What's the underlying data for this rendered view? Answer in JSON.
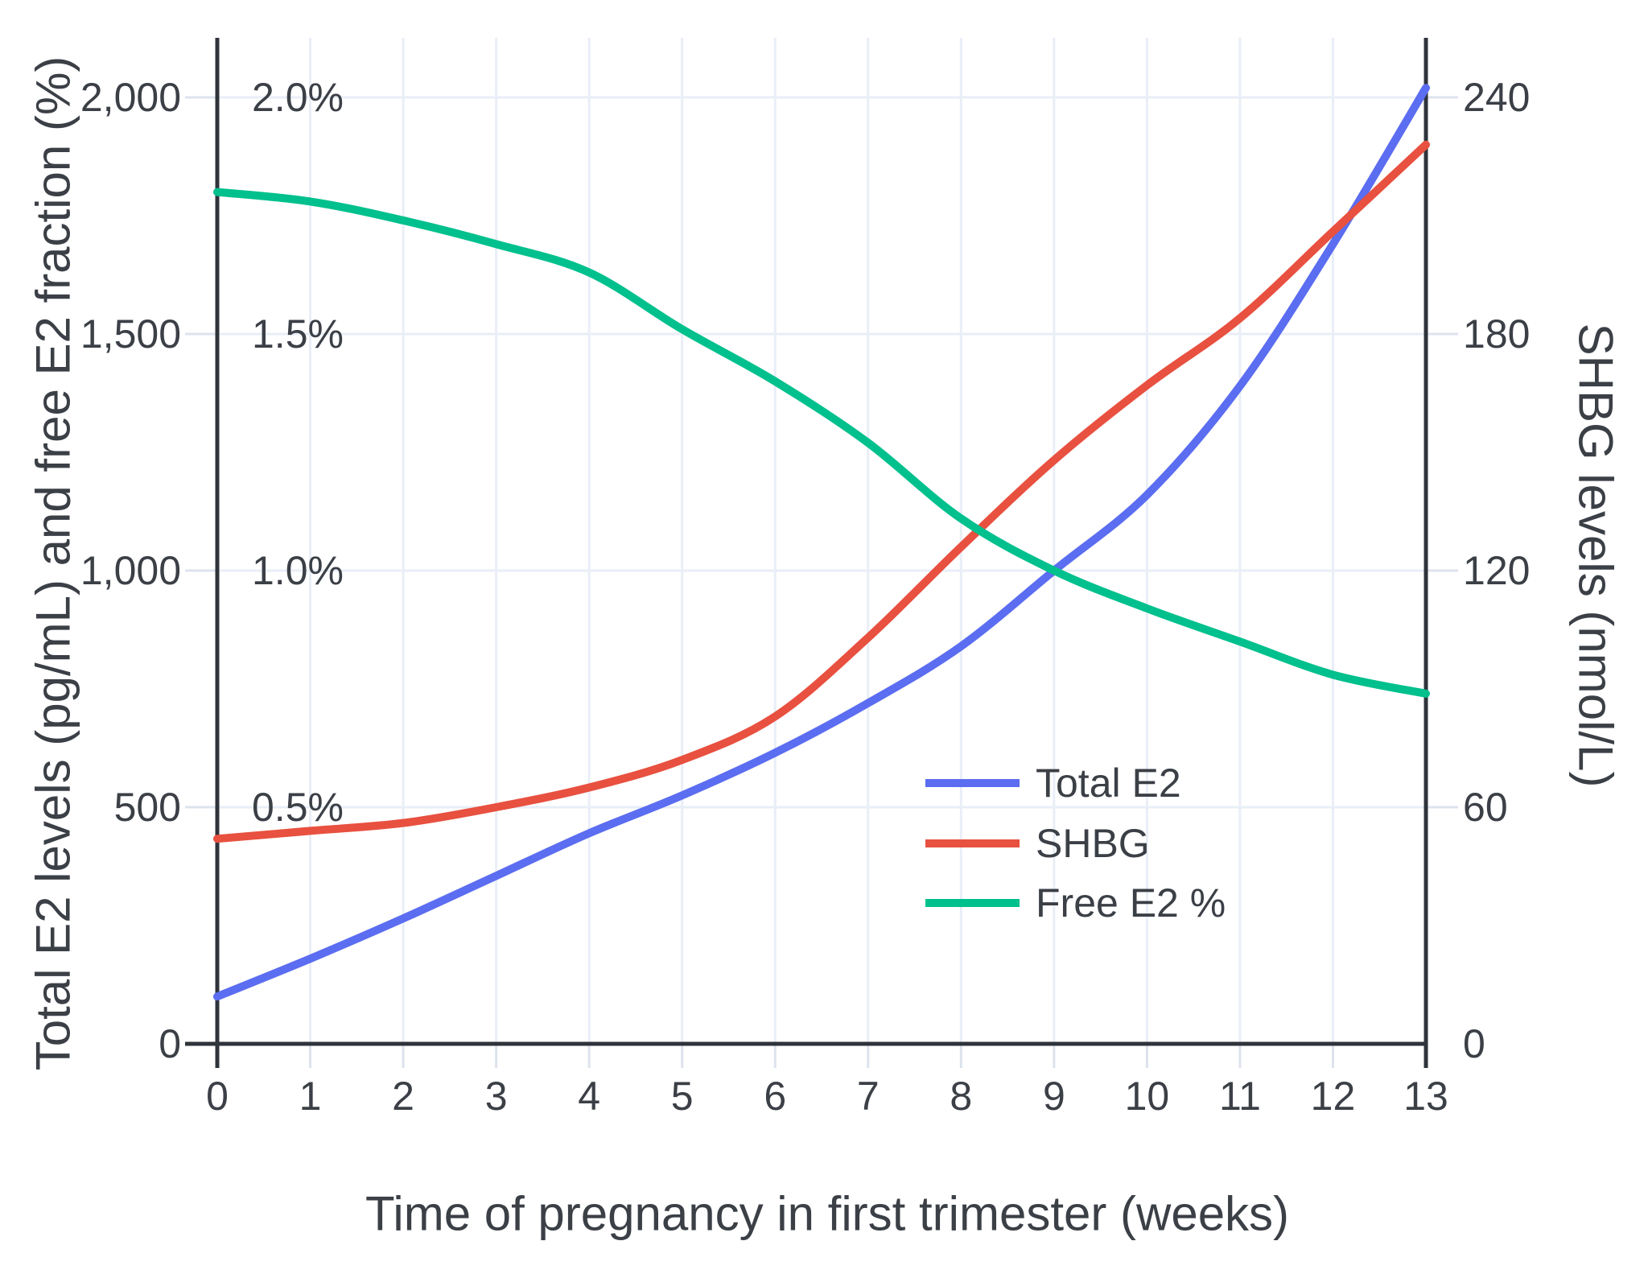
{
  "chart_data": {
    "type": "line",
    "title": "",
    "xlabel": "Time of pregnancy in first trimester (weeks)",
    "ylabel_left": "Total E2 levels (pg/mL) and free E2 fraction (%)",
    "ylabel_right": "SHBG levels (nmol/L)",
    "x": [
      0,
      1,
      2,
      3,
      4,
      5,
      6,
      7,
      8,
      9,
      10,
      11,
      12,
      13
    ],
    "x_axis": {
      "range": [
        0,
        13
      ],
      "ticks": [
        0,
        1,
        2,
        3,
        4,
        5,
        6,
        7,
        8,
        9,
        10,
        11,
        12,
        13
      ],
      "tick_labels": [
        "0",
        "1",
        "2",
        "3",
        "4",
        "5",
        "6",
        "7",
        "8",
        "9",
        "10",
        "11",
        "12",
        "13"
      ]
    },
    "left_axis": {
      "units": "pg/mL",
      "range": [
        0,
        2125
      ],
      "ticks": [
        0,
        500,
        1000,
        1500,
        2000
      ],
      "tick_labels": [
        "0",
        "500",
        "1,000",
        "1,500",
        "2,000"
      ]
    },
    "percent_axis": {
      "units": "%",
      "range": [
        0,
        2.125
      ],
      "ticks": [
        0.5,
        1.0,
        1.5,
        2.0
      ],
      "tick_labels": [
        "0.5%",
        "1.0%",
        "1.5%",
        "2.0%"
      ]
    },
    "right_axis": {
      "units": "nmol/L",
      "range": [
        0,
        255
      ],
      "ticks": [
        0,
        60,
        120,
        180,
        240
      ],
      "tick_labels": [
        "0",
        "60",
        "120",
        "180",
        "240"
      ]
    },
    "series": [
      {
        "name": "Total E2",
        "axis": "left",
        "units": "pg/mL",
        "color": "#5b6df0",
        "values": [
          100,
          180,
          265,
          355,
          445,
          525,
          615,
          720,
          840,
          1000,
          1160,
          1390,
          1690,
          2020
        ]
      },
      {
        "name": "SHBG",
        "axis": "right",
        "units": "nmol/L",
        "color": "#e8503f",
        "values": [
          52,
          54,
          56,
          60,
          65,
          72,
          83,
          103,
          126,
          148,
          167,
          184,
          206,
          228
        ]
      },
      {
        "name": "Free E2 %",
        "axis": "percent",
        "units": "%",
        "color": "#00c08d",
        "values": [
          1.8,
          1.78,
          1.74,
          1.69,
          1.63,
          1.51,
          1.4,
          1.27,
          1.11,
          1.0,
          0.92,
          0.85,
          0.78,
          0.74
        ]
      }
    ],
    "legend": {
      "position": "center-right",
      "entries": [
        "Total E2",
        "SHBG",
        "Free E2 %"
      ]
    },
    "grid": true
  },
  "colors": {
    "background": "#ffffff",
    "gridline": "#e9eef7",
    "tick_mark": "#dde3ed",
    "axis_line": "#2f333b",
    "text": "#3b3f46",
    "series_total_e2": "#5b6df0",
    "series_shbg": "#e8503f",
    "series_free_e2": "#00c08d"
  }
}
